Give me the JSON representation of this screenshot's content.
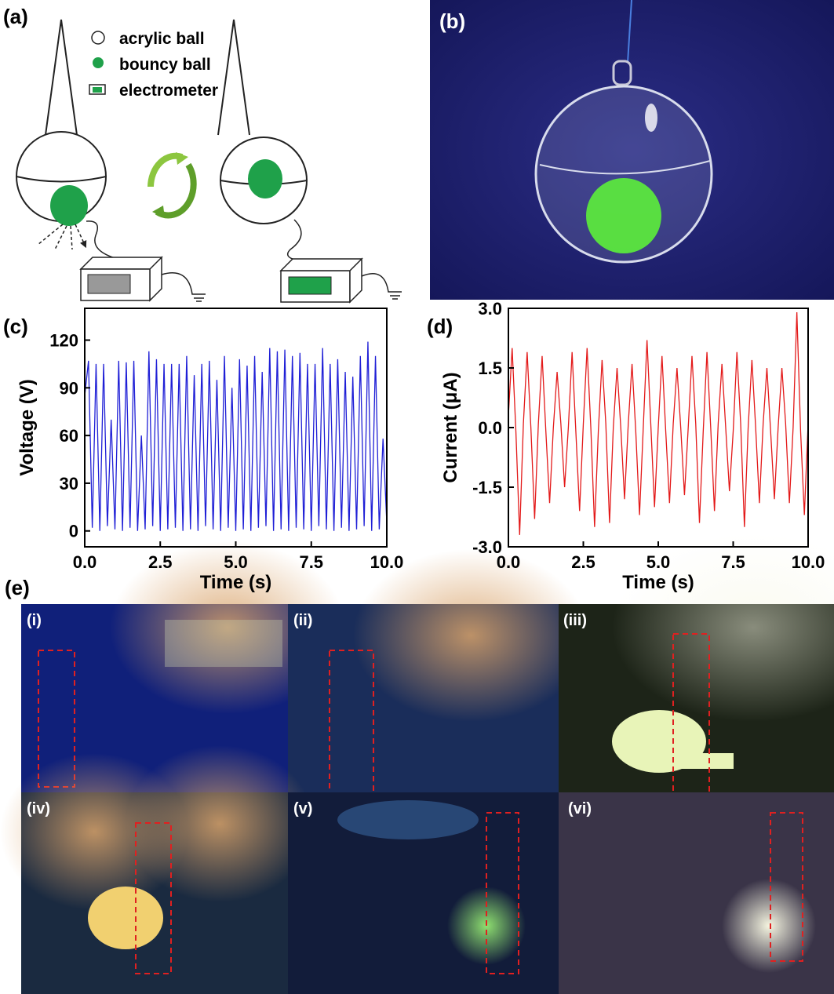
{
  "panels": {
    "a": {
      "label": "(a)",
      "legend": [
        "acrylic ball",
        "bouncy ball",
        "electrometer"
      ]
    },
    "b": {
      "label": "(b)"
    },
    "e": {
      "label": "(e)",
      "photos": [
        "(i)",
        "(ii)",
        "(iii)",
        "(iv)",
        "(v)",
        "(vi)"
      ]
    }
  },
  "chart_data": [
    {
      "type": "line",
      "panel_label": "(c)",
      "x_label": "Time (s)",
      "y_label": "Voltage (V)",
      "xlim": [
        0,
        10
      ],
      "ylim": [
        -10,
        140
      ],
      "xticks": [
        {
          "value": 0,
          "label": "0.0"
        },
        2.5,
        {
          "value": 5,
          "label": "5.0"
        },
        7.5,
        {
          "value": 10,
          "label": "10.0"
        }
      ],
      "yticks": [
        0,
        30,
        60,
        90,
        120
      ],
      "series": [
        {
          "color": "#1f1fd6",
          "x": [
            0,
            0.125,
            0.25,
            0.375,
            0.5,
            0.625,
            0.75,
            0.875,
            1,
            1.125,
            1.25,
            1.375,
            1.5,
            1.625,
            1.75,
            1.875,
            2,
            2.125,
            2.25,
            2.375,
            2.5,
            2.625,
            2.75,
            2.875,
            3,
            3.125,
            3.25,
            3.375,
            3.5,
            3.625,
            3.75,
            3.875,
            4,
            4.125,
            4.25,
            4.375,
            4.5,
            4.625,
            4.75,
            4.875,
            5,
            5.125,
            5.25,
            5.375,
            5.5,
            5.625,
            5.75,
            5.875,
            6,
            6.125,
            6.25,
            6.375,
            6.5,
            6.625,
            6.75,
            6.875,
            7,
            7.125,
            7.25,
            7.375,
            7.5,
            7.625,
            7.75,
            7.875,
            8,
            8.125,
            8.25,
            8.375,
            8.5,
            8.625,
            8.75,
            8.875,
            9,
            9.125,
            9.25,
            9.375,
            9.5,
            9.625,
            9.75,
            9.875,
            10
          ],
          "values": [
            85,
            107,
            2,
            105,
            0,
            105,
            3,
            70,
            1,
            107,
            0,
            106,
            2,
            107,
            0,
            60,
            1,
            113,
            3,
            108,
            0,
            105,
            1,
            105,
            2,
            105,
            0,
            110,
            1,
            98,
            0,
            105,
            3,
            107,
            1,
            95,
            0,
            110,
            2,
            90,
            0,
            108,
            1,
            104,
            0,
            110,
            2,
            100,
            3,
            115,
            0,
            113,
            1,
            114,
            0,
            110,
            2,
            112,
            1,
            105,
            0,
            105,
            3,
            115,
            1,
            105,
            0,
            108,
            2,
            100,
            0,
            97,
            1,
            110,
            3,
            119,
            0,
            110,
            1,
            58,
            5
          ]
        }
      ]
    },
    {
      "type": "line",
      "panel_label": "(d)",
      "x_label": "Time (s)",
      "y_label": "Current (μA)",
      "xlim": [
        0,
        10
      ],
      "ylim": [
        -3,
        3
      ],
      "xticks": [
        {
          "value": 0,
          "label": "0.0"
        },
        2.5,
        {
          "value": 5,
          "label": "5.0"
        },
        7.5,
        {
          "value": 10,
          "label": "10.0"
        }
      ],
      "yticks": [
        {
          "value": 3,
          "label": "3.0"
        },
        1.5,
        {
          "value": 0,
          "label": "0.0"
        },
        -1.5,
        {
          "value": -3,
          "label": "-3.0"
        }
      ],
      "series": [
        {
          "color": "#e31a1a",
          "x": [
            0,
            0.125,
            0.25,
            0.375,
            0.5,
            0.625,
            0.75,
            0.875,
            1,
            1.125,
            1.25,
            1.375,
            1.5,
            1.625,
            1.75,
            1.875,
            2,
            2.125,
            2.25,
            2.375,
            2.5,
            2.625,
            2.75,
            2.875,
            3,
            3.125,
            3.25,
            3.375,
            3.5,
            3.625,
            3.75,
            3.875,
            4,
            4.125,
            4.25,
            4.375,
            4.5,
            4.625,
            4.75,
            4.875,
            5,
            5.125,
            5.25,
            5.375,
            5.5,
            5.625,
            5.75,
            5.875,
            6,
            6.125,
            6.25,
            6.375,
            6.5,
            6.625,
            6.75,
            6.875,
            7,
            7.125,
            7.25,
            7.375,
            7.5,
            7.625,
            7.75,
            7.875,
            8,
            8.125,
            8.25,
            8.375,
            8.5,
            8.625,
            8.75,
            8.875,
            9,
            9.125,
            9.25,
            9.375,
            9.5,
            9.625,
            9.75,
            9.875,
            10
          ],
          "values": [
            0.3,
            2.0,
            -0.1,
            -2.7,
            0.1,
            1.9,
            0,
            -2.3,
            0.1,
            1.8,
            -0.1,
            -1.9,
            0,
            1.4,
            0.1,
            -1.5,
            0,
            1.9,
            -0.1,
            -2.1,
            0.1,
            2.0,
            0,
            -2.5,
            -0.1,
            1.7,
            0.1,
            -2.4,
            0,
            1.5,
            0,
            -1.8,
            0.1,
            1.6,
            -0.1,
            -2.2,
            0,
            2.2,
            0.1,
            -2.0,
            0,
            1.8,
            -0.1,
            -1.9,
            0.1,
            1.5,
            0,
            -1.7,
            0,
            1.8,
            0.1,
            -2.4,
            -0.1,
            1.9,
            0,
            -2.1,
            0.1,
            1.6,
            0,
            -1.6,
            -0.1,
            1.9,
            0.1,
            -2.5,
            0,
            1.7,
            0,
            -1.9,
            0.1,
            1.5,
            -0.1,
            -1.8,
            0,
            1.5,
            0.1,
            -1.9,
            0,
            2.9,
            -0.1,
            -2.2,
            0.1
          ]
        }
      ]
    }
  ]
}
